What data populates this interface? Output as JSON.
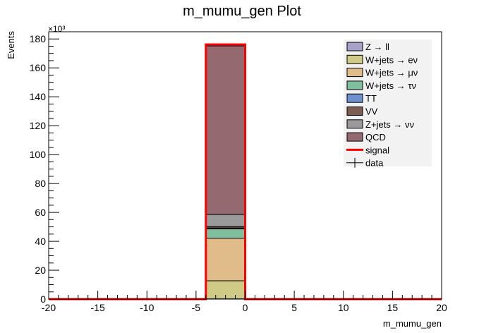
{
  "chart_data": {
    "type": "bar",
    "stacked": true,
    "title": "m_mumu_gen Plot",
    "xlabel": "m_mumu_gen",
    "ylabel": "Events",
    "y_multiplier_label": "×10³",
    "xlim": [
      -20,
      20
    ],
    "ylim": [
      0,
      185
    ],
    "x_major_ticks": [
      -20,
      -15,
      -10,
      -5,
      0,
      5,
      10,
      15,
      20
    ],
    "x_tick_labels": [
      "-20",
      "-15",
      "-10",
      "-5",
      "0",
      "5",
      "10",
      "15",
      "20"
    ],
    "y_major_ticks": [
      0,
      20,
      40,
      60,
      80,
      100,
      120,
      140,
      160,
      180
    ],
    "y_tick_labels": [
      "0",
      "20",
      "40",
      "60",
      "80",
      "100",
      "120",
      "140",
      "160",
      "180"
    ],
    "bin": {
      "x_low": -4,
      "x_high": 0
    },
    "series": [
      {
        "name": "Z → ll",
        "value": 0.2,
        "color": "#a6a1c7"
      },
      {
        "name": "W+jets → eν",
        "value": 12.5,
        "color": "#cfcb86"
      },
      {
        "name": "W+jets → μν",
        "value": 29.5,
        "color": "#dfbc8a"
      },
      {
        "name": "W+jets → τν",
        "value": 6.5,
        "color": "#7fbf9d"
      },
      {
        "name": "TT",
        "value": 0.5,
        "color": "#6e90cf"
      },
      {
        "name": "VV",
        "value": 1.0,
        "color": "#7b5d52"
      },
      {
        "name": "Z+jets → νν",
        "value": 8.5,
        "color": "#9a9a9a"
      },
      {
        "name": "QCD",
        "value": 116.5,
        "color": "#956970"
      }
    ],
    "signal": {
      "name": "signal",
      "x_low": -4,
      "x_high": 0,
      "value": 176.2,
      "color": "#ff0000"
    },
    "data": {
      "name": "data"
    },
    "legend_position": "top-right"
  }
}
